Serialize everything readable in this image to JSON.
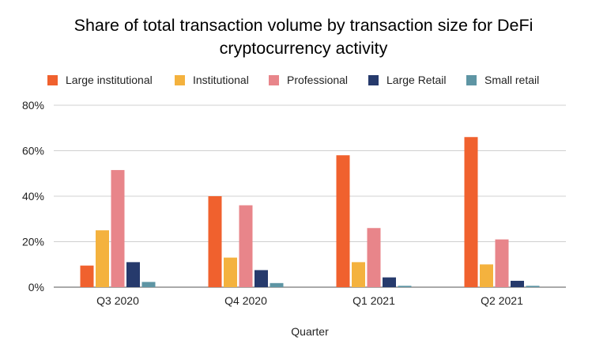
{
  "chart_data": {
    "type": "bar",
    "title_line1": "Share of total transaction volume by transaction size for DeFi",
    "title_line2": "cryptocurrency activity",
    "xlabel": "Quarter",
    "ylabel": "",
    "categories": [
      "Q3 2020",
      "Q4 2020",
      "Q1 2021",
      "Q2 2021"
    ],
    "ylim": [
      0,
      80
    ],
    "yticks": [
      0,
      20,
      40,
      60,
      80
    ],
    "ytick_labels": [
      "0%",
      "20%",
      "40%",
      "60%",
      "80%"
    ],
    "grid": true,
    "legend_position": "top",
    "series": [
      {
        "name": "Large institutional",
        "color": "#f0612e",
        "values": [
          9.5,
          40,
          58,
          66
        ]
      },
      {
        "name": "Institutional",
        "color": "#f4b23e",
        "values": [
          25,
          13,
          11,
          10
        ]
      },
      {
        "name": "Professional",
        "color": "#e8858a",
        "values": [
          51.5,
          36,
          26,
          21
        ]
      },
      {
        "name": "Large Retail",
        "color": "#263a6c",
        "values": [
          11,
          7.5,
          4.3,
          2.8
        ]
      },
      {
        "name": "Small retail",
        "color": "#5e95a4",
        "values": [
          2.3,
          1.8,
          0.6,
          0.6
        ]
      }
    ]
  }
}
